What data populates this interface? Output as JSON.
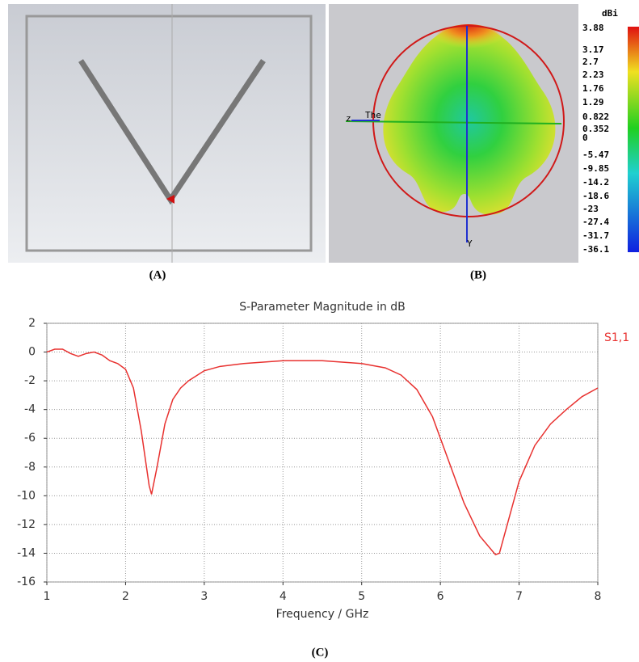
{
  "panel_labels": [
    "(A)",
    "(B)",
    "(C)"
  ],
  "pattern_axes": {
    "z": "z",
    "y": "Y",
    "theta": "The"
  },
  "colorbar": {
    "title": "dBi",
    "labels": [
      "3.88",
      "3.17",
      "2.7",
      "2.23",
      "1.76",
      "1.29",
      "0.822",
      "0.352",
      "0",
      "-5.47",
      "-9.85",
      "-14.2",
      "-18.6",
      "-23",
      "-27.4",
      "-31.7",
      "-36.1"
    ]
  },
  "chart_data": {
    "type": "line",
    "title": "S-Parameter Magnitude in dB",
    "x_label": "Frequency / GHz",
    "xlim": [
      1,
      8
    ],
    "xticks": [
      1,
      2,
      3,
      4,
      5,
      6,
      7,
      8
    ],
    "ylim": [
      -16,
      2
    ],
    "yticks": [
      2,
      0,
      -2,
      -4,
      -6,
      -8,
      -10,
      -12,
      -14,
      -16
    ],
    "grid": true,
    "x": [
      1.0,
      1.1,
      1.2,
      1.3,
      1.4,
      1.5,
      1.6,
      1.7,
      1.8,
      1.9,
      2.0,
      2.1,
      2.2,
      2.3,
      2.33,
      2.4,
      2.5,
      2.6,
      2.7,
      2.8,
      3.0,
      3.2,
      3.5,
      4.0,
      4.5,
      5.0,
      5.3,
      5.5,
      5.7,
      5.9,
      6.1,
      6.3,
      6.5,
      6.7,
      6.75,
      6.9,
      7.0,
      7.2,
      7.4,
      7.6,
      7.8,
      8.0
    ],
    "series": [
      {
        "name": "S1,1",
        "color": "#e8312f",
        "values": [
          0.0,
          0.2,
          0.2,
          -0.1,
          -0.3,
          -0.1,
          0.0,
          -0.2,
          -0.6,
          -0.8,
          -1.2,
          -2.5,
          -5.5,
          -9.3,
          -9.9,
          -8.0,
          -5.0,
          -3.3,
          -2.5,
          -2.0,
          -1.3,
          -1.0,
          -0.8,
          -0.6,
          -0.6,
          -0.8,
          -1.1,
          -1.6,
          -2.6,
          -4.5,
          -7.5,
          -10.5,
          -12.8,
          -14.1,
          -14.0,
          -11.0,
          -9.0,
          -6.5,
          -5.0,
          -4.0,
          -3.1,
          -2.5
        ]
      }
    ]
  }
}
